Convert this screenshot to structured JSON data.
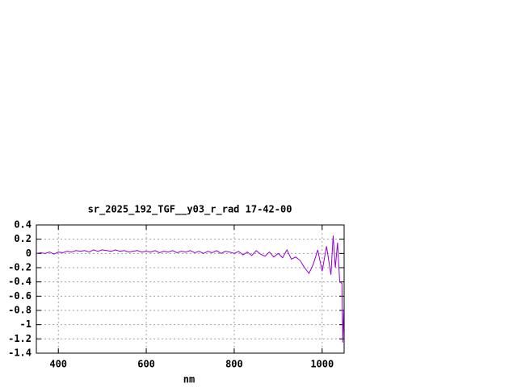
{
  "chart_data": {
    "type": "line",
    "title": "sr_2025_192_TGF__y03_r_rad 17-42-00",
    "x_label": "nm",
    "x": [
      350,
      360,
      370,
      380,
      390,
      400,
      410,
      420,
      430,
      440,
      450,
      460,
      470,
      480,
      490,
      500,
      510,
      520,
      530,
      540,
      550,
      560,
      570,
      580,
      590,
      600,
      610,
      620,
      630,
      640,
      650,
      660,
      670,
      680,
      690,
      700,
      710,
      720,
      730,
      740,
      750,
      760,
      770,
      780,
      790,
      800,
      810,
      820,
      830,
      840,
      850,
      860,
      870,
      880,
      890,
      900,
      910,
      920,
      930,
      940,
      950,
      960,
      970,
      980,
      990,
      1000,
      1010,
      1020,
      1025,
      1030,
      1035,
      1040,
      1045,
      1047,
      1049
    ],
    "values": [
      0.0,
      0.01,
      0.0,
      0.02,
      -0.01,
      0.02,
      0.01,
      0.03,
      0.02,
      0.04,
      0.03,
      0.04,
      0.02,
      0.05,
      0.03,
      0.05,
      0.04,
      0.03,
      0.05,
      0.03,
      0.04,
      0.02,
      0.03,
      0.04,
      0.02,
      0.03,
      0.02,
      0.04,
      0.01,
      0.03,
      0.02,
      0.04,
      0.01,
      0.03,
      0.02,
      0.04,
      0.01,
      0.03,
      0.0,
      0.03,
      0.01,
      0.04,
      0.0,
      0.03,
      0.02,
      0.0,
      0.03,
      -0.02,
      0.02,
      -0.03,
      0.04,
      -0.01,
      -0.04,
      0.02,
      -0.05,
      0.0,
      -0.06,
      0.05,
      -0.08,
      -0.05,
      -0.1,
      -0.2,
      -0.28,
      -0.15,
      0.05,
      -0.25,
      0.1,
      -0.3,
      0.25,
      -0.2,
      0.15,
      -0.4,
      -0.42,
      -1.25,
      -0.8
    ],
    "color": "#9400d3",
    "xlim": [
      350,
      1050
    ],
    "xticks": [
      400,
      600,
      800,
      1000
    ],
    "ylim": [
      -1.4,
      0.4
    ],
    "yticks": [
      0.4,
      0.2,
      0,
      -0.2,
      -0.4,
      -0.6,
      -0.8,
      -1,
      -1.2,
      -1.4
    ],
    "grid": true
  }
}
